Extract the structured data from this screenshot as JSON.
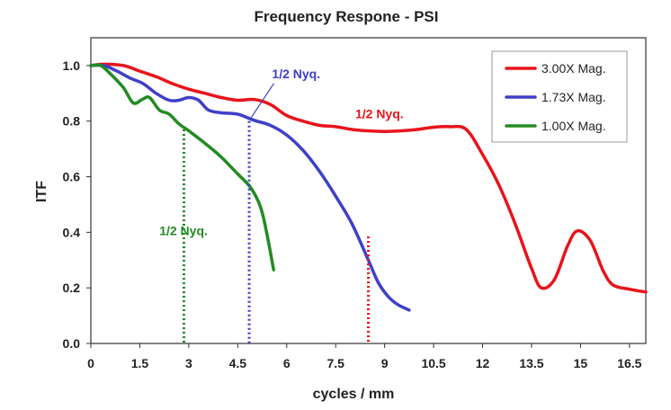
{
  "chart_data": {
    "type": "line",
    "title": "Frequency Respone - PSI",
    "xlabel": "cycles / mm",
    "ylabel": "ITF",
    "xlim": [
      0,
      17
    ],
    "ylim": [
      0,
      1.1
    ],
    "xticks": [
      0,
      1.5,
      3,
      4.5,
      6,
      7.5,
      9,
      10.5,
      12,
      13.5,
      15,
      16.5
    ],
    "xtick_labels": [
      "0",
      "1.5",
      "3",
      "4.5",
      "6",
      "7.5",
      "9",
      "10.5",
      "12",
      "13.5",
      "15",
      "16.5"
    ],
    "yticks": [
      0,
      0.2,
      0.4,
      0.6,
      0.8,
      1.0
    ],
    "ytick_labels": [
      "0.0",
      "0.2",
      "0.4",
      "0.6",
      "0.8",
      "1.0"
    ],
    "legend_position": "top-right",
    "series": [
      {
        "name": "3.00X Mag.",
        "color": "#e8141b",
        "x": [
          0,
          0.4,
          1.0,
          1.5,
          2.0,
          2.5,
          3.0,
          3.5,
          4.0,
          4.5,
          5.0,
          5.5,
          6.0,
          6.5,
          7.0,
          7.5,
          8.0,
          8.5,
          9.0,
          9.5,
          10.0,
          10.5,
          11.0,
          11.5,
          12.0,
          12.5,
          13.0,
          13.5,
          13.8,
          14.2,
          14.6,
          14.9,
          15.3,
          15.7,
          16.0,
          16.5,
          17.0
        ],
        "y": [
          1.0,
          1.005,
          1.0,
          0.98,
          0.96,
          0.935,
          0.915,
          0.9,
          0.885,
          0.875,
          0.878,
          0.86,
          0.82,
          0.8,
          0.785,
          0.78,
          0.77,
          0.765,
          0.763,
          0.765,
          0.77,
          0.778,
          0.78,
          0.77,
          0.68,
          0.57,
          0.43,
          0.27,
          0.2,
          0.23,
          0.35,
          0.405,
          0.37,
          0.26,
          0.21,
          0.195,
          0.185
        ]
      },
      {
        "name": "1.73X Mag.",
        "color": "#3f3fc8",
        "x": [
          0,
          0.4,
          0.8,
          1.2,
          1.6,
          2.0,
          2.4,
          2.7,
          3.0,
          3.3,
          3.6,
          4.0,
          4.5,
          5.0,
          5.5,
          6.0,
          6.5,
          7.0,
          7.5,
          8.0,
          8.5,
          8.8,
          9.1,
          9.4,
          9.75
        ],
        "y": [
          1.0,
          1.0,
          0.98,
          0.955,
          0.935,
          0.9,
          0.875,
          0.875,
          0.885,
          0.875,
          0.84,
          0.83,
          0.825,
          0.803,
          0.785,
          0.75,
          0.695,
          0.62,
          0.53,
          0.43,
          0.3,
          0.22,
          0.17,
          0.14,
          0.12
        ]
      },
      {
        "name": "1.00X Mag.",
        "color": "#238b23",
        "x": [
          0,
          0.3,
          0.6,
          1.0,
          1.3,
          1.6,
          1.8,
          2.1,
          2.4,
          2.7,
          3.0,
          3.5,
          4.0,
          4.5,
          4.9,
          5.2,
          5.4,
          5.6
        ],
        "y": [
          1.0,
          1.0,
          0.97,
          0.92,
          0.865,
          0.88,
          0.885,
          0.84,
          0.825,
          0.79,
          0.765,
          0.72,
          0.67,
          0.61,
          0.56,
          0.49,
          0.39,
          0.265
        ]
      }
    ],
    "nyquist_markers": [
      {
        "series": "1.00X Mag.",
        "x": 2.85,
        "y": 0.77,
        "label": "1/2 Nyq.",
        "color": "#238b23",
        "label_x": 2.1,
        "label_y": 0.39
      },
      {
        "series": "1.73X Mag.",
        "x": 4.85,
        "y": 0.8,
        "label": "1/2 Nyq.",
        "color": "#3f3fc8",
        "label_x": 5.55,
        "label_y": 0.955,
        "arrow": true
      },
      {
        "series": "3.00X Mag.",
        "x": 8.5,
        "y": 0.385,
        "label": "1/2 Nyq.",
        "color": "#e8141b",
        "label_x": 8.1,
        "label_y": 0.81
      }
    ]
  }
}
